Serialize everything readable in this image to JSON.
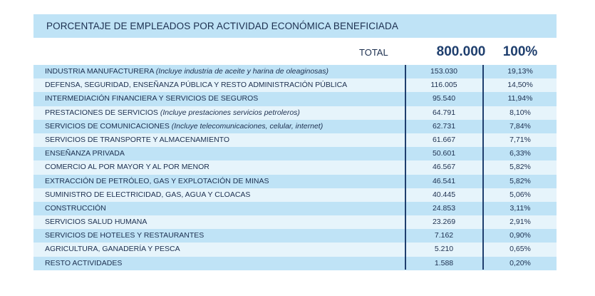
{
  "title": "PORCENTAJE DE EMPLEADOS POR ACTIVIDAD ECONÓMICA BENEFICIADA",
  "total": {
    "label": "TOTAL",
    "value": "800.000",
    "percent": "100%"
  },
  "rows": [
    {
      "name": "INDUSTRIA MANUFACTURERA",
      "note": "(Incluye industria de aceite y harina de oleaginosas)",
      "count": "153.030",
      "percent": "19,13%"
    },
    {
      "name": "DEFENSA, SEGURIDAD, ENSEÑANZA PÚBLICA Y RESTO ADMINISTRACIÓN PÚBLICA",
      "note": "",
      "count": "116.005",
      "percent": "14,50%"
    },
    {
      "name": "INTERMEDIACIÓN FINANCIERA Y SERVICIOS DE SEGUROS",
      "note": "",
      "count": "95.540",
      "percent": "11,94%"
    },
    {
      "name": "PRESTACIONES DE SERVICIOS",
      "note": "(Incluye prestaciones servicios petroleros)",
      "count": "64.791",
      "percent": "8,10%"
    },
    {
      "name": "SERVICIOS DE COMUNICACIONES",
      "note": "(Incluye telecomunicaciones, celular, internet)",
      "count": "62.731",
      "percent": "7,84%"
    },
    {
      "name": "SERVICIOS DE TRANSPORTE Y ALMACENAMIENTO",
      "note": "",
      "count": "61.667",
      "percent": "7,71%"
    },
    {
      "name": "ENSEÑANZA PRIVADA",
      "note": "",
      "count": "50.601",
      "percent": "6,33%"
    },
    {
      "name": "COMERCIO AL POR MAYOR Y AL POR MENOR",
      "note": "",
      "count": "46.567",
      "percent": "5,82%"
    },
    {
      "name": "EXTRACCIÓN DE PETRÓLEO, GAS Y EXPLOTACIÓN DE MINAS",
      "note": "",
      "count": "46.541",
      "percent": "5,82%"
    },
    {
      "name": "SUMINISTRO DE ELECTRICIDAD, GAS, AGUA Y CLOACAS",
      "note": "",
      "count": "40.445",
      "percent": "5,06%"
    },
    {
      "name": "CONSTRUCCIÓN",
      "note": "",
      "count": "24.853",
      "percent": "3,11%"
    },
    {
      "name": "SERVICIOS SALUD HUMANA",
      "note": "",
      "count": "23.269",
      "percent": "2,91%"
    },
    {
      "name": "SERVICIOS DE HOTELES Y RESTAURANTES",
      "note": "",
      "count": "7.162",
      "percent": "0,90%"
    },
    {
      "name": "AGRICULTURA, GANADERÍA Y PESCA",
      "note": "",
      "count": "5.210",
      "percent": "0,65%"
    },
    {
      "name": "RESTO ACTIVIDADES",
      "note": "",
      "count": "1.588",
      "percent": "0,20%"
    }
  ],
  "colors": {
    "band_dark": "#bfe3f6",
    "band_light": "#e6f4fb",
    "text": "#1c2f4f",
    "accent": "#1f3f6e"
  }
}
